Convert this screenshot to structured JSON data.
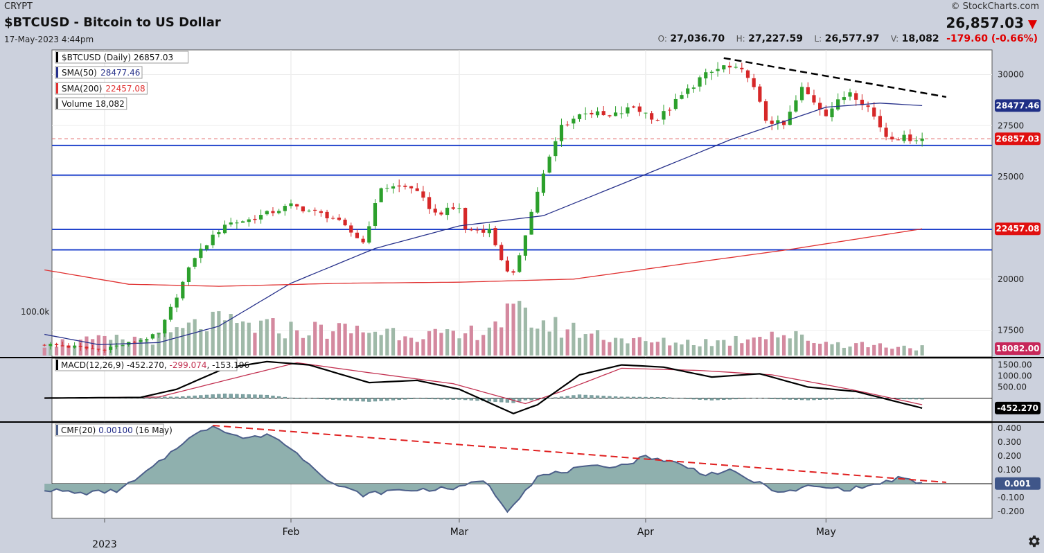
{
  "header": {
    "exchange": "CRYPT",
    "title": "$BTCUSD - Bitcoin to US Dollar",
    "date": "17-May-2023 4:44pm",
    "copyright": "© StockCharts.com",
    "price": "26,857.03",
    "ohlc": {
      "o_label": "O:",
      "o": "27,036.70",
      "h_label": "H:",
      "h": "27,227.59",
      "l_label": "L:",
      "l": "26,577.97",
      "v_label": "V:",
      "v": "18,082",
      "change": "-179.60 (-0.66%)"
    }
  },
  "legend": {
    "price": "$BTCUSD (Daily) 26857.03",
    "sma50_label": "SMA(50)",
    "sma50_value": "28477.46",
    "sma200_label": "SMA(200)",
    "sma200_value": "22457.08",
    "volume_label": "Volume",
    "volume_value": "18,082",
    "macd_label": "MACD(12,26,9)",
    "macd_v1": "-452.270",
    "macd_v2": "-299.074",
    "macd_v3": "-153.196",
    "cmf_label": "CMF(20)",
    "cmf_value": "0.00100",
    "cmf_date": "(16 May)"
  },
  "badges": {
    "sma50": "28477.46",
    "last": "26857.03",
    "sma200": "22457.08",
    "volume": "18082.00",
    "macd": "-452.270",
    "cmf": "0.001"
  },
  "colors": {
    "up": "#2ca02c",
    "down": "#d62728",
    "sma50": "#27318b",
    "sma200": "#e03030",
    "support": "#2244cc",
    "vol_up": "#9fb9a8",
    "vol_down": "#d4899f",
    "cmf_fill": "#8fb0ae",
    "cmf_line": "#4c5f8a",
    "macd_line": "#000000",
    "signal_line": "#c23050",
    "histogram": "#7fa3a3"
  },
  "chart_data": [
    {
      "type": "candlestick",
      "title": "$BTCUSD - Bitcoin to US Dollar",
      "x_labels": [
        "2023",
        "Feb",
        "Mar",
        "Apr",
        "May"
      ],
      "x_label_dates": [
        "2023-01-01",
        "2023-02-01",
        "2023-03-01",
        "2023-04-01",
        "2023-05-01"
      ],
      "date_range": [
        "2022-12-22",
        "2023-05-17"
      ],
      "y_ticks": [
        17500,
        20000,
        25000,
        27500,
        30000
      ],
      "ylim": [
        16200,
        31200
      ],
      "support_lines": [
        26530,
        25080,
        22430,
        21430
      ],
      "resistance_trendline": [
        [
          "2023-04-14",
          30800
        ],
        [
          "2023-05-21",
          28900
        ]
      ],
      "last_price": 26857.03,
      "series": [
        {
          "name": "$BTCUSD (Daily)",
          "anchors": [
            [
              "2022-12-22",
              16820
            ],
            [
              "2022-12-31",
              16550
            ],
            [
              "2023-01-05",
              16850
            ],
            [
              "2023-01-10",
              17300
            ],
            [
              "2023-01-13",
              19200
            ],
            [
              "2023-01-16",
              21100
            ],
            [
              "2023-01-21",
              22700
            ],
            [
              "2023-01-25",
              22900
            ],
            [
              "2023-02-01",
              23600
            ],
            [
              "2023-02-08",
              23000
            ],
            [
              "2023-02-13",
              21800
            ],
            [
              "2023-02-16",
              24500
            ],
            [
              "2023-02-21",
              24500
            ],
            [
              "2023-02-25",
              23200
            ],
            [
              "2023-03-01",
              23500
            ],
            [
              "2023-03-02",
              22400
            ],
            [
              "2023-03-06",
              22400
            ],
            [
              "2023-03-09",
              20300
            ],
            [
              "2023-03-10",
              20200
            ],
            [
              "2023-03-14",
              24300
            ],
            [
              "2023-03-18",
              27500
            ],
            [
              "2023-03-22",
              28200
            ],
            [
              "2023-03-26",
              27900
            ],
            [
              "2023-03-30",
              28400
            ],
            [
              "2023-04-03",
              27800
            ],
            [
              "2023-04-10",
              29800
            ],
            [
              "2023-04-14",
              30400
            ],
            [
              "2023-04-18",
              30000
            ],
            [
              "2023-04-21",
              27800
            ],
            [
              "2023-04-24",
              27500
            ],
            [
              "2023-04-27",
              29300
            ],
            [
              "2023-05-01",
              28100
            ],
            [
              "2023-05-05",
              29200
            ],
            [
              "2023-05-08",
              28400
            ],
            [
              "2023-05-11",
              27000
            ],
            [
              "2023-05-14",
              26900
            ],
            [
              "2023-05-17",
              26857
            ]
          ]
        },
        {
          "name": "SMA(50)",
          "anchors": [
            [
              "2022-12-22",
              17300
            ],
            [
              "2022-12-31",
              16800
            ],
            [
              "2023-01-10",
              16900
            ],
            [
              "2023-01-20",
              17700
            ],
            [
              "2023-02-01",
              19800
            ],
            [
              "2023-02-15",
              21500
            ],
            [
              "2023-03-01",
              22600
            ],
            [
              "2023-03-15",
              23100
            ],
            [
              "2023-03-31",
              25000
            ],
            [
              "2023-04-15",
              26800
            ],
            [
              "2023-05-01",
              28400
            ],
            [
              "2023-05-10",
              28600
            ],
            [
              "2023-05-17",
              28477
            ]
          ]
        },
        {
          "name": "SMA(200)",
          "anchors": [
            [
              "2022-12-22",
              20450
            ],
            [
              "2023-01-05",
              19750
            ],
            [
              "2023-01-20",
              19650
            ],
            [
              "2023-02-10",
              19800
            ],
            [
              "2023-03-01",
              19850
            ],
            [
              "2023-03-20",
              20000
            ],
            [
              "2023-04-05",
              20650
            ],
            [
              "2023-04-25",
              21450
            ],
            [
              "2023-05-17",
              22457
            ]
          ]
        }
      ]
    },
    {
      "type": "bar",
      "title": "Volume",
      "label": "100.0k",
      "last_value": 18082,
      "anchors": [
        [
          "2022-12-22",
          28000
        ],
        [
          "2023-01-10",
          40000
        ],
        [
          "2023-01-18",
          75000
        ],
        [
          "2023-02-01",
          60000
        ],
        [
          "2023-02-20",
          55000
        ],
        [
          "2023-03-01",
          40000
        ],
        [
          "2023-03-10",
          95000
        ],
        [
          "2023-03-17",
          65000
        ],
        [
          "2023-04-01",
          30000
        ],
        [
          "2023-04-15",
          32000
        ],
        [
          "2023-04-21",
          55000
        ],
        [
          "2023-05-01",
          30000
        ],
        [
          "2023-05-17",
          18082
        ]
      ]
    },
    {
      "type": "line",
      "title": "MACD(12,26,9)",
      "y_ticks": [
        500,
        1000,
        1500
      ],
      "ylim": [
        -1050,
        1800
      ],
      "macd_last": -452.27,
      "signal_last": -299.074,
      "histogram_last": -153.196,
      "series": [
        {
          "name": "MACD",
          "anchors": [
            [
              "2022-12-22",
              0
            ],
            [
              "2023-01-07",
              30
            ],
            [
              "2023-01-13",
              400
            ],
            [
              "2023-01-21",
              1350
            ],
            [
              "2023-01-28",
              1650
            ],
            [
              "2023-02-04",
              1500
            ],
            [
              "2023-02-14",
              700
            ],
            [
              "2023-02-22",
              800
            ],
            [
              "2023-03-01",
              400
            ],
            [
              "2023-03-10",
              -700
            ],
            [
              "2023-03-14",
              -300
            ],
            [
              "2023-03-21",
              1050
            ],
            [
              "2023-03-28",
              1500
            ],
            [
              "2023-04-04",
              1400
            ],
            [
              "2023-04-12",
              950
            ],
            [
              "2023-04-20",
              1100
            ],
            [
              "2023-04-28",
              500
            ],
            [
              "2023-05-06",
              300
            ],
            [
              "2023-05-17",
              -452
            ]
          ]
        },
        {
          "name": "Signal",
          "anchors": [
            [
              "2022-12-22",
              0
            ],
            [
              "2023-01-10",
              50
            ],
            [
              "2023-01-24",
              1000
            ],
            [
              "2023-02-02",
              1600
            ],
            [
              "2023-02-14",
              1150
            ],
            [
              "2023-02-28",
              650
            ],
            [
              "2023-03-12",
              -250
            ],
            [
              "2023-03-18",
              300
            ],
            [
              "2023-03-28",
              1350
            ],
            [
              "2023-04-10",
              1250
            ],
            [
              "2023-04-22",
              1050
            ],
            [
              "2023-05-05",
              400
            ],
            [
              "2023-05-17",
              -299
            ]
          ]
        }
      ]
    },
    {
      "type": "area",
      "title": "CMF(20)",
      "y_ticks": [
        -0.2,
        -0.1,
        0.001,
        0.1,
        0.2,
        0.3,
        0.4
      ],
      "ylim": [
        -0.25,
        0.44
      ],
      "last_value": 0.001,
      "trendline": [
        [
          "2023-01-19",
          0.42
        ],
        [
          "2023-05-21",
          0.01
        ]
      ],
      "series": [
        {
          "name": "CMF(20)",
          "anchors": [
            [
              "2022-12-22",
              -0.04
            ],
            [
              "2022-12-28",
              -0.07
            ],
            [
              "2023-01-03",
              -0.05
            ],
            [
              "2023-01-06",
              0.02
            ],
            [
              "2023-01-10",
              0.15
            ],
            [
              "2023-01-14",
              0.3
            ],
            [
              "2023-01-19",
              0.42
            ],
            [
              "2023-01-24",
              0.33
            ],
            [
              "2023-01-29",
              0.35
            ],
            [
              "2023-02-04",
              0.15
            ],
            [
              "2023-02-08",
              0.0
            ],
            [
              "2023-02-13",
              -0.08
            ],
            [
              "2023-02-18",
              -0.05
            ],
            [
              "2023-02-24",
              -0.04
            ],
            [
              "2023-03-01",
              -0.03
            ],
            [
              "2023-03-05",
              0.03
            ],
            [
              "2023-03-09",
              -0.19
            ],
            [
              "2023-03-14",
              0.05
            ],
            [
              "2023-03-21",
              0.11
            ],
            [
              "2023-03-29",
              0.14
            ],
            [
              "2023-04-01",
              0.2
            ],
            [
              "2023-04-06",
              0.15
            ],
            [
              "2023-04-11",
              0.07
            ],
            [
              "2023-04-15",
              0.09
            ],
            [
              "2023-04-20",
              0.0
            ],
            [
              "2023-04-24",
              -0.07
            ],
            [
              "2023-04-28",
              -0.02
            ],
            [
              "2023-05-05",
              -0.04
            ],
            [
              "2023-05-10",
              0.0
            ],
            [
              "2023-05-13",
              0.04
            ],
            [
              "2023-05-17",
              0.001
            ]
          ]
        }
      ]
    }
  ]
}
